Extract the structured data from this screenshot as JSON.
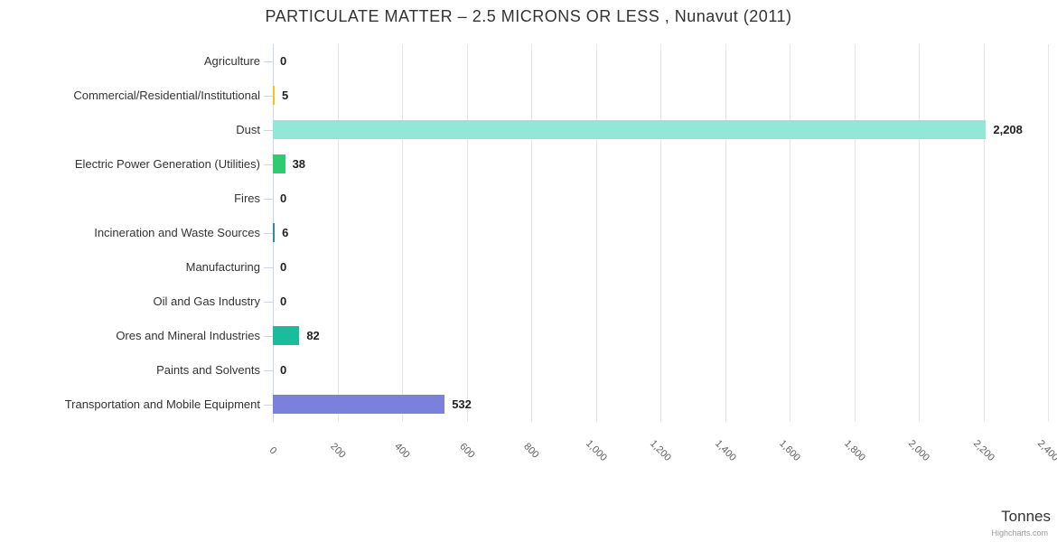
{
  "chart_data": {
    "type": "bar",
    "orientation": "horizontal",
    "title": "PARTICULATE MATTER – 2.5 MICRONS OR LESS , Nunavut (2011)",
    "categories": [
      "Agriculture",
      "Commercial/Residential/Institutional",
      "Dust",
      "Electric Power Generation (Utilities)",
      "Fires",
      "Incineration and Waste Sources",
      "Manufacturing",
      "Oil and Gas Industry",
      "Ores and Mineral Industries",
      "Paints and Solvents",
      "Transportation and Mobile Equipment"
    ],
    "values": [
      0,
      5,
      2208,
      38,
      0,
      6,
      0,
      0,
      82,
      0,
      532
    ],
    "value_labels": [
      "0",
      "5",
      "2,208",
      "38",
      "0",
      "6",
      "0",
      "0",
      "82",
      "0",
      "532"
    ],
    "bar_colors": [
      null,
      "#f0c419",
      "#92e8d8",
      "#2ecc71",
      null,
      "#2d8c9e",
      null,
      null,
      "#1abc9c",
      null,
      "#7b80dd"
    ],
    "xlabel": "Tonnes",
    "ylabel": "",
    "xlim": [
      0,
      2400
    ],
    "x_ticks": [
      "0",
      "200",
      "400",
      "600",
      "800",
      "1,000",
      "1,200",
      "1,400",
      "1,600",
      "1,800",
      "2,000",
      "2,200",
      "2,400"
    ],
    "grid": true,
    "legend": false
  },
  "colors": {
    "grid_line": "#e6e6e6",
    "axis_line": "#ccd6eb",
    "tick_mark": "#ccd6eb",
    "label_text": "#333333",
    "value_text": "#222222",
    "tick_text": "#606060",
    "credit_text": "#999999"
  },
  "credit": "Highcharts.com"
}
